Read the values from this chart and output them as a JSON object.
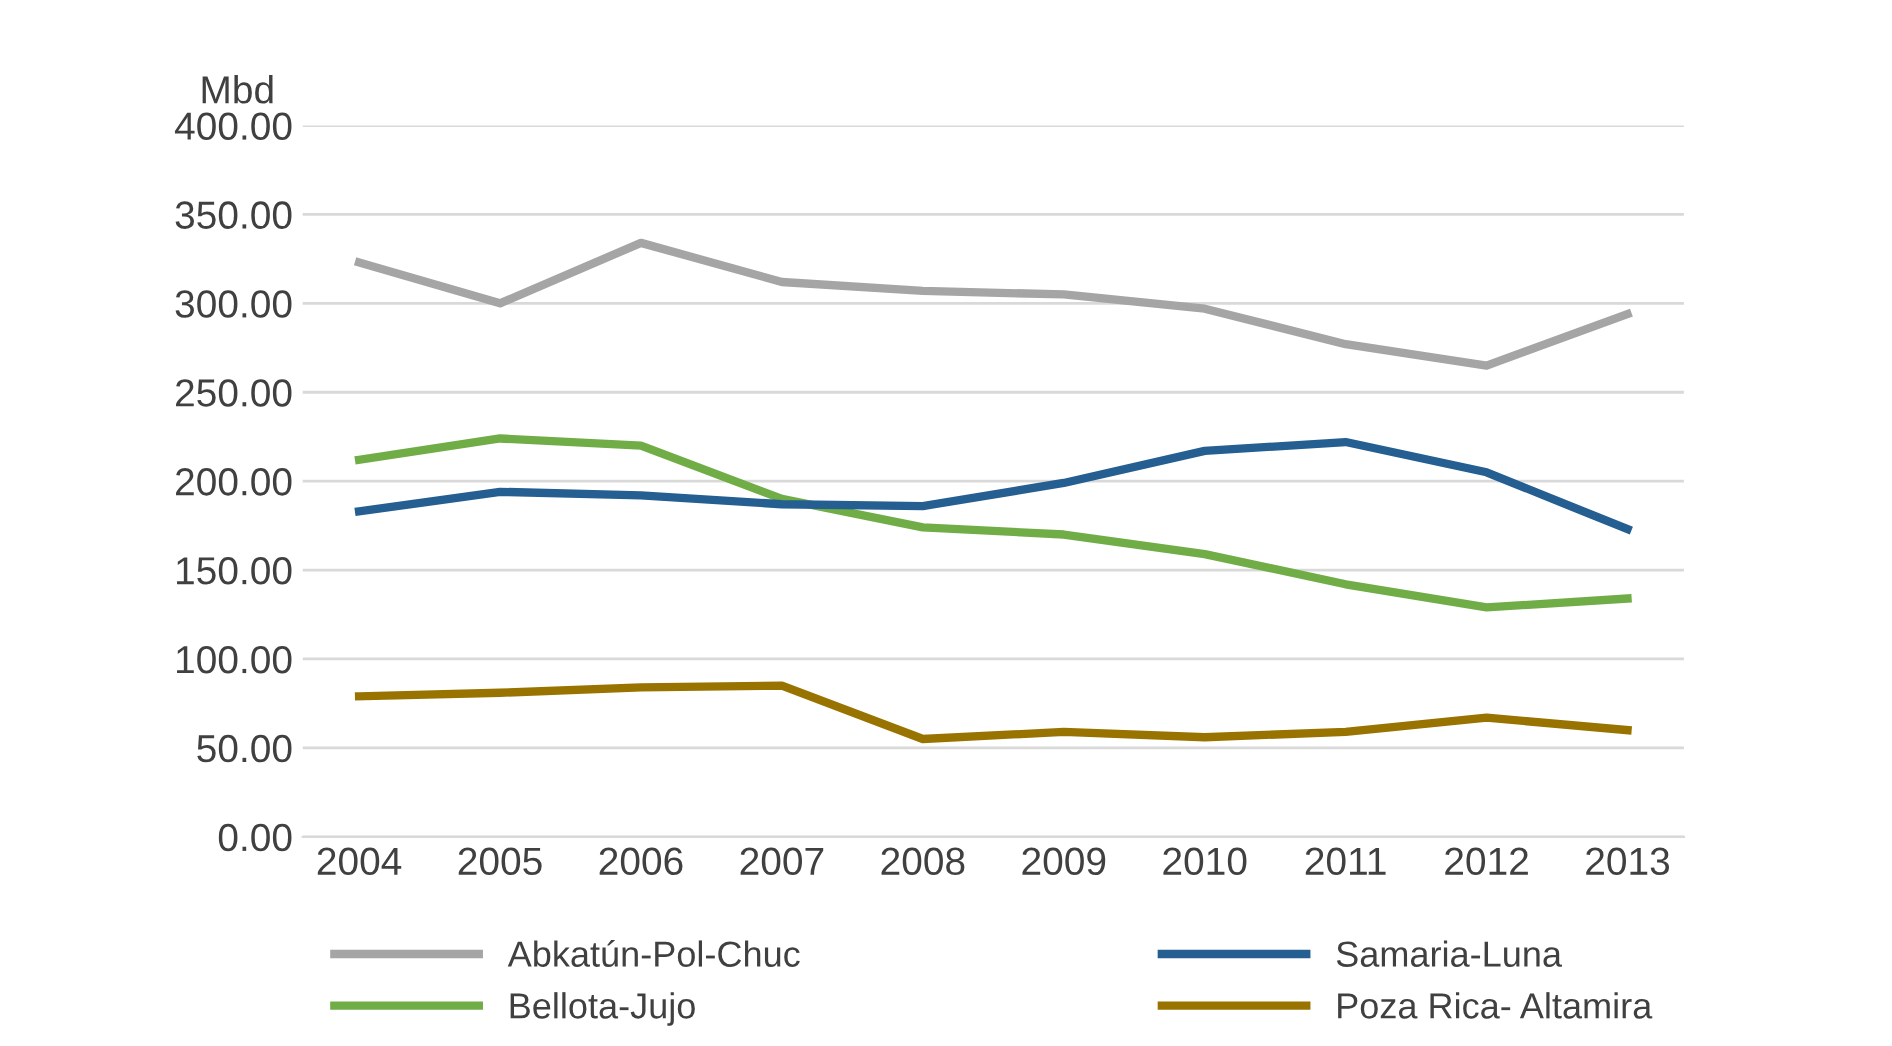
{
  "chart_data": {
    "type": "line",
    "ylabel": "Mbd",
    "categories": [
      "2004",
      "2005",
      "2006",
      "2007",
      "2008",
      "2009",
      "2010",
      "2011",
      "2012",
      "2013"
    ],
    "series": [
      {
        "name": "Abkatún-Pol-Chuc",
        "color": "#a5a5a5",
        "values": [
          323,
          300,
          334,
          312,
          307,
          305,
          297,
          277,
          265,
          294
        ]
      },
      {
        "name": "Bellota-Jujo",
        "color": "#70ad47",
        "values": [
          212,
          224,
          220,
          190,
          174,
          170,
          159,
          142,
          129,
          134
        ]
      },
      {
        "name": "Samaria-Luna",
        "color": "#255e91",
        "values": [
          183,
          194,
          192,
          187,
          186,
          199,
          217,
          222,
          205,
          173
        ]
      },
      {
        "name": "Poza Rica- Altamira",
        "color": "#997300",
        "values": [
          79,
          81,
          84,
          85,
          55,
          59,
          56,
          59,
          67,
          60
        ]
      }
    ],
    "ylim": [
      0,
      400
    ],
    "yticks": [
      {
        "value": 0,
        "label": "0.00"
      },
      {
        "value": 50,
        "label": "50.00"
      },
      {
        "value": 100,
        "label": "100.00"
      },
      {
        "value": 150,
        "label": "150.00"
      },
      {
        "value": 200,
        "label": "200.00"
      },
      {
        "value": 250,
        "label": "250.00"
      },
      {
        "value": 300,
        "label": "300.00"
      },
      {
        "value": 350,
        "label": "350.00"
      },
      {
        "value": 400,
        "label": "400.00"
      }
    ],
    "grid": "y",
    "legend": "bottom",
    "marker": "none",
    "line_style": "solid"
  }
}
